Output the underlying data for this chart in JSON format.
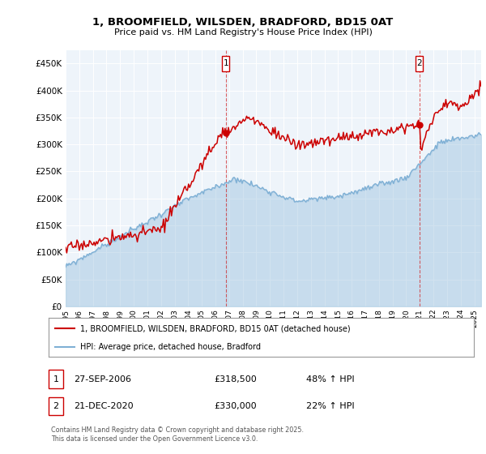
{
  "title": "1, BROOMFIELD, WILSDEN, BRADFORD, BD15 0AT",
  "subtitle": "Price paid vs. HM Land Registry's House Price Index (HPI)",
  "legend_line1": "1, BROOMFIELD, WILSDEN, BRADFORD, BD15 0AT (detached house)",
  "legend_line2": "HPI: Average price, detached house, Bradford",
  "ann1_label": "1",
  "ann1_date": "27-SEP-2006",
  "ann1_price": "£318,500",
  "ann1_hpi": "48% ↑ HPI",
  "ann2_label": "2",
  "ann2_date": "21-DEC-2020",
  "ann2_price": "£330,000",
  "ann2_hpi": "22% ↑ HPI",
  "copyright": "Contains HM Land Registry data © Crown copyright and database right 2025.\nThis data is licensed under the Open Government Licence v3.0.",
  "red_color": "#cc0000",
  "blue_color": "#7fb0d5",
  "blue_fill": "#ddeeff",
  "ylim_max": 475000,
  "yticks": [
    0,
    50000,
    100000,
    150000,
    200000,
    250000,
    300000,
    350000,
    400000,
    450000
  ],
  "t1": 2006.75,
  "t2": 2020.97,
  "chart_bg": "#eef4fa"
}
